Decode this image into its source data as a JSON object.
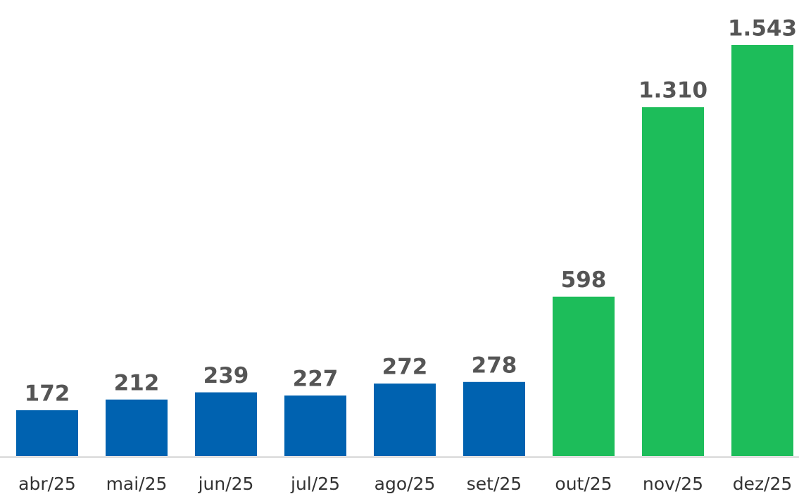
{
  "chart_data": {
    "type": "bar",
    "categories": [
      "abr/25",
      "mai/25",
      "jun/25",
      "jul/25",
      "ago/25",
      "set/25",
      "out/25",
      "nov/25",
      "dez/25"
    ],
    "values": [
      172,
      212,
      239,
      227,
      272,
      278,
      598,
      1310,
      1543
    ],
    "value_labels": [
      "172",
      "212",
      "239",
      "227",
      "272",
      "278",
      "598",
      "1.310",
      "1.543"
    ],
    "colors": [
      "#0062b0",
      "#0062b0",
      "#0062b0",
      "#0062b0",
      "#0062b0",
      "#0062b0",
      "#1dbd5a",
      "#1dbd5a",
      "#1dbd5a"
    ]
  }
}
